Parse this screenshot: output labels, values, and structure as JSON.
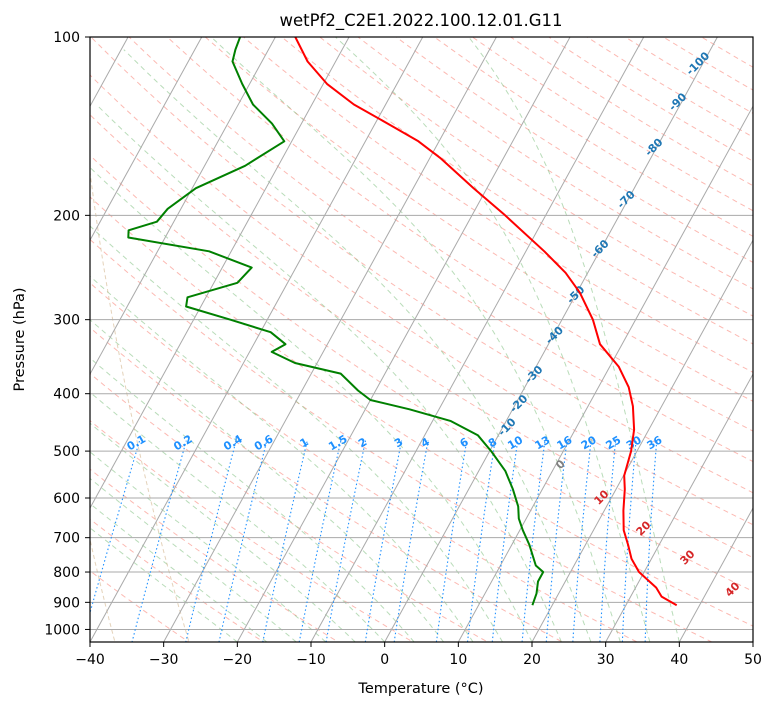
{
  "chart_data": {
    "type": "line",
    "title": "wetPf2_C2E1.2022.100.12.01.G11",
    "xlabel": "Temperature (°C)",
    "ylabel": "Pressure (hPa)",
    "xlim": [
      -40,
      50
    ],
    "ylim": [
      1050,
      100
    ],
    "y_scale": "log",
    "x_ticks": [
      -40,
      -30,
      -20,
      -10,
      0,
      10,
      20,
      30,
      40,
      50
    ],
    "y_ticks": [
      100,
      200,
      300,
      400,
      500,
      600,
      700,
      800,
      900,
      1000
    ],
    "grid": true,
    "skew_T": true,
    "series": [
      {
        "color": "#ff0000",
        "values": [
          {
            "p": 910,
            "t": 36.9
          },
          {
            "p": 880,
            "t": 34.2
          },
          {
            "p": 850,
            "t": 32.8
          },
          {
            "p": 800,
            "t": 29.3
          },
          {
            "p": 760,
            "t": 27.3
          },
          {
            "p": 720,
            "t": 25.8
          },
          {
            "p": 680,
            "t": 24.1
          },
          {
            "p": 630,
            "t": 22.6
          },
          {
            "p": 580,
            "t": 21.2
          },
          {
            "p": 550,
            "t": 20.1
          },
          {
            "p": 500,
            "t": 19.2
          },
          {
            "p": 460,
            "t": 18.0
          },
          {
            "p": 420,
            "t": 16.1
          },
          {
            "p": 390,
            "t": 14.1
          },
          {
            "p": 360,
            "t": 11.2
          },
          {
            "p": 330,
            "t": 7.0
          },
          {
            "p": 300,
            "t": 4.2
          },
          {
            "p": 270,
            "t": 0.4
          },
          {
            "p": 250,
            "t": -3.0
          },
          {
            "p": 230,
            "t": -7.5
          },
          {
            "p": 200,
            "t": -15.5
          },
          {
            "p": 180,
            "t": -21.8
          },
          {
            "p": 160,
            "t": -28.6
          },
          {
            "p": 150,
            "t": -32.8
          },
          {
            "p": 140,
            "t": -38.3
          },
          {
            "p": 130,
            "t": -44.3
          },
          {
            "p": 120,
            "t": -49.5
          },
          {
            "p": 110,
            "t": -53.8
          },
          {
            "p": 100,
            "t": -57.3
          }
        ]
      },
      {
        "color": "#008000",
        "values": [
          {
            "p": 910,
            "t": 17.3
          },
          {
            "p": 870,
            "t": 17.0
          },
          {
            "p": 830,
            "t": 16.3
          },
          {
            "p": 800,
            "t": 16.3
          },
          {
            "p": 780,
            "t": 14.8
          },
          {
            "p": 720,
            "t": 12.4
          },
          {
            "p": 680,
            "t": 10.4
          },
          {
            "p": 650,
            "t": 9.0
          },
          {
            "p": 620,
            "t": 8.0
          },
          {
            "p": 580,
            "t": 6.0
          },
          {
            "p": 540,
            "t": 3.6
          },
          {
            "p": 500,
            "t": 0.2
          },
          {
            "p": 470,
            "t": -2.8
          },
          {
            "p": 445,
            "t": -7.5
          },
          {
            "p": 425,
            "t": -14.0
          },
          {
            "p": 410,
            "t": -20.0
          },
          {
            "p": 395,
            "t": -22.4
          },
          {
            "p": 370,
            "t": -26.0
          },
          {
            "p": 355,
            "t": -33.0
          },
          {
            "p": 340,
            "t": -37.0
          },
          {
            "p": 330,
            "t": -35.7
          },
          {
            "p": 315,
            "t": -38.6
          },
          {
            "p": 300,
            "t": -45.0
          },
          {
            "p": 285,
            "t": -52.0
          },
          {
            "p": 275,
            "t": -52.5
          },
          {
            "p": 260,
            "t": -46.8
          },
          {
            "p": 245,
            "t": -46.0
          },
          {
            "p": 230,
            "t": -53.0
          },
          {
            "p": 218,
            "t": -65.0
          },
          {
            "p": 212,
            "t": -65.5
          },
          {
            "p": 205,
            "t": -62.3
          },
          {
            "p": 195,
            "t": -61.8
          },
          {
            "p": 180,
            "t": -59.5
          },
          {
            "p": 165,
            "t": -54.5
          },
          {
            "p": 150,
            "t": -51.0
          },
          {
            "p": 140,
            "t": -54.0
          },
          {
            "p": 130,
            "t": -58.0
          },
          {
            "p": 120,
            "t": -61.0
          },
          {
            "p": 110,
            "t": -64.0
          },
          {
            "p": 105,
            "t": -64.5
          },
          {
            "p": 100,
            "t": -64.8
          }
        ]
      }
    ],
    "isotherm_labels": {
      "color": "#1f77b4",
      "values": [
        "-100",
        "-90",
        "-80",
        "-70",
        "-60",
        "-50",
        "-40",
        "-30",
        "-20",
        "-10"
      ]
    },
    "mixing_ratio_labels": {
      "color": "#1e90ff",
      "values": [
        "0.1",
        "0.2",
        "0.4",
        "0.6",
        "1",
        "1.5",
        "2",
        "3",
        "4",
        "6",
        "8",
        "10",
        "13",
        "16",
        "20",
        "25",
        "30",
        "36"
      ]
    },
    "hot_isotherm_labels": {
      "zero": {
        "label": "0",
        "color": "#808080"
      },
      "color": "#d62728",
      "values": [
        "10",
        "20",
        "30",
        "40"
      ]
    },
    "colors": {
      "temperature": "#ff0000",
      "dewpoint": "#008000",
      "dry_adiabat": "#fa8072",
      "moist_adiabat": "#7fbf7f",
      "mixing_ratio": "#1e90ff",
      "saturation": "#d2b48c",
      "grid": "#aaaaaa"
    }
  }
}
